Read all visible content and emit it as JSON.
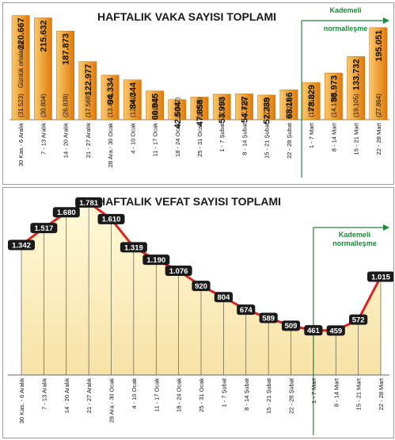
{
  "chart_data": [
    {
      "type": "bar",
      "title": "HAFTALIK VAKA SAYISI TOPLAMI",
      "categories": [
        "30 Kas.- 6 Aralık",
        "7 - 13 Aralık",
        "14 - 20 Aralık",
        "21 - 27 Aralık",
        "28 Ara.- 30 Ocak",
        "4 - 10 Ocak",
        "11 - 17 Ocak",
        "18 - 24 Ocak",
        "25 - 31 Ocak",
        "1 - 7 Şubat",
        "8 - 14 Şubat",
        "15 - 21 Şubat",
        "22 - 28 Şubat",
        "1 - 7 Mart",
        "8 - 14 Mart",
        "15 - 21 Mart",
        "22 - 28 Mart"
      ],
      "values": [
        220667,
        215632,
        187873,
        122977,
        94334,
        84344,
        60845,
        42504,
        47858,
        53993,
        54727,
        52239,
        63166,
        78829,
        98973,
        133732,
        195051
      ],
      "value_labels": [
        "220.667",
        "215.632",
        "187.873",
        "122.977",
        "94.334",
        "84.344",
        "60.845",
        "42.504",
        "47.858",
        "53.993",
        "54.727",
        "52.239",
        "63.166",
        "78.829",
        "98.973",
        "133.732",
        "195.051"
      ],
      "daily_avg_labels": [
        "(31.523)",
        "(30.804)",
        "(26.839)",
        "(17.568)",
        "(13.476)",
        "(12.049)",
        "(8.692)",
        "(6.072)",
        "(6.836)",
        "(7.713)",
        "(7.818)",
        "(7.462)",
        "(9.023)",
        "(11.261)",
        "(14.139)",
        "(19.105)",
        "(27.864)"
      ],
      "daily_avg_caption": "Günlük ortalama",
      "annotation": "Kademeli normalleşme",
      "annotation_from_category": "1 - 7 Mart",
      "ylim": [
        0,
        230000
      ],
      "colors": {
        "bar_light": "#fbc96a",
        "bar_dark": "#e07a0a",
        "annotation": "#1a8a3a"
      }
    },
    {
      "type": "area",
      "title": "HAFTALIK VEFAT SAYISI TOPLAMI",
      "categories": [
        "30 Kas. - 6 Aralık",
        "7 - 13 Aralık",
        "14 - 20 Aralık",
        "21 - 27 Aralık",
        "28 Ara.- 30 Ocak",
        "4 - 10 Ocak",
        "11 - 17 Ocak",
        "18 - 24 Ocak",
        "25 - 31 Ocak",
        "1 - 7 Şubat",
        "8 - 14 Şubat",
        "15 - 21 Şubat",
        "22 - 28 Şubat",
        "1 - 7 Mart",
        "8 - 14 Mart",
        "15 - 21 Mart",
        "22 - 28 Mart"
      ],
      "values": [
        1342,
        1517,
        1680,
        1781,
        1610,
        1319,
        1190,
        1076,
        920,
        804,
        674,
        589,
        509,
        461,
        459,
        572,
        1015
      ],
      "value_labels": [
        "1.342",
        "1.517",
        "1.680",
        "1.781",
        "1.610",
        "1.319",
        "1.190",
        "1.076",
        "920",
        "804",
        "674",
        "589",
        "509",
        "461",
        "459",
        "572",
        "1.015"
      ],
      "annotation": "Kademeli normalleşme",
      "annotation_from_category": "1 - 7 Mart",
      "ylim": [
        0,
        1850
      ],
      "colors": {
        "area_top": "#fffad8",
        "area_bottom": "#f8e2a6",
        "line": "#dd2222",
        "marker": "#1a1a1a",
        "annotation": "#1a8a3a"
      }
    }
  ]
}
